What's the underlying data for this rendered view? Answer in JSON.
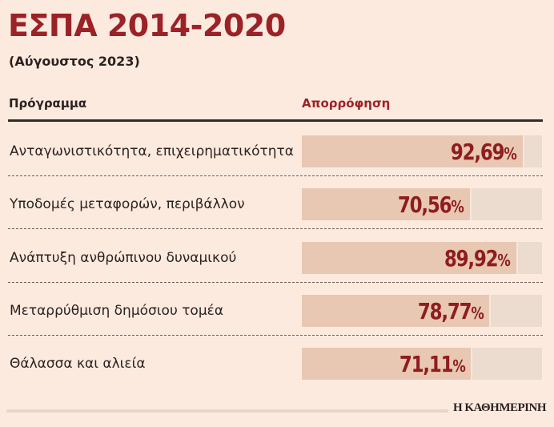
{
  "header": {
    "title": "ΕΣΠΑ 2014-2020",
    "subtitle": "(Αύγουστος 2023)"
  },
  "columns": {
    "program": "Πρόγραμμα",
    "absorption": "Απορρόφηση"
  },
  "rows": [
    {
      "label": "Ανταγωνιστικότητα, επιχειρηματικότητα",
      "value": "92,69",
      "pct": "%",
      "percent": 92.69
    },
    {
      "label": "Υποδομές μεταφορών, περιβάλλον",
      "value": "70,56",
      "pct": "%",
      "percent": 70.56
    },
    {
      "label": "Ανάπτυξη ανθρώπινου δυναμικού",
      "value": "89,92",
      "pct": "%",
      "percent": 89.92
    },
    {
      "label": "Μεταρρύθμιση δημόσιου τομέα",
      "value": "78,77",
      "pct": "%",
      "percent": 78.77
    },
    {
      "label": "Θάλασσα και αλιεία",
      "value": "71,11",
      "pct": "%",
      "percent": 71.11
    }
  ],
  "footer": {
    "brand": "Η ΚΑΘΗΜΕΡΙΝΗ"
  },
  "colors": {
    "accent": "#9b2226",
    "background": "#fdeadf",
    "bar_fill": "#e8c8b2",
    "bar_track": "#ecdbcf"
  },
  "chart_data": {
    "type": "bar",
    "orientation": "horizontal",
    "title": "ΕΣΠΑ 2014-2020",
    "subtitle": "(Αύγουστος 2023)",
    "xlabel": "Απορρόφηση",
    "ylabel": "Πρόγραμμα",
    "categories": [
      "Ανταγωνιστικότητα, επιχειρηματικότητα",
      "Υποδομές μεταφορών, περιβάλλον",
      "Ανάπτυξη ανθρώπινου δυναμικού",
      "Μεταρρύθμιση δημόσιου τομέα",
      "Θάλασσα και αλιεία"
    ],
    "values": [
      92.69,
      70.56,
      89.92,
      78.77,
      71.11
    ],
    "unit": "%",
    "xlim": [
      0,
      100
    ],
    "grid": false,
    "legend": null,
    "source": "Η ΚΑΘΗΜΕΡΙΝΗ"
  }
}
